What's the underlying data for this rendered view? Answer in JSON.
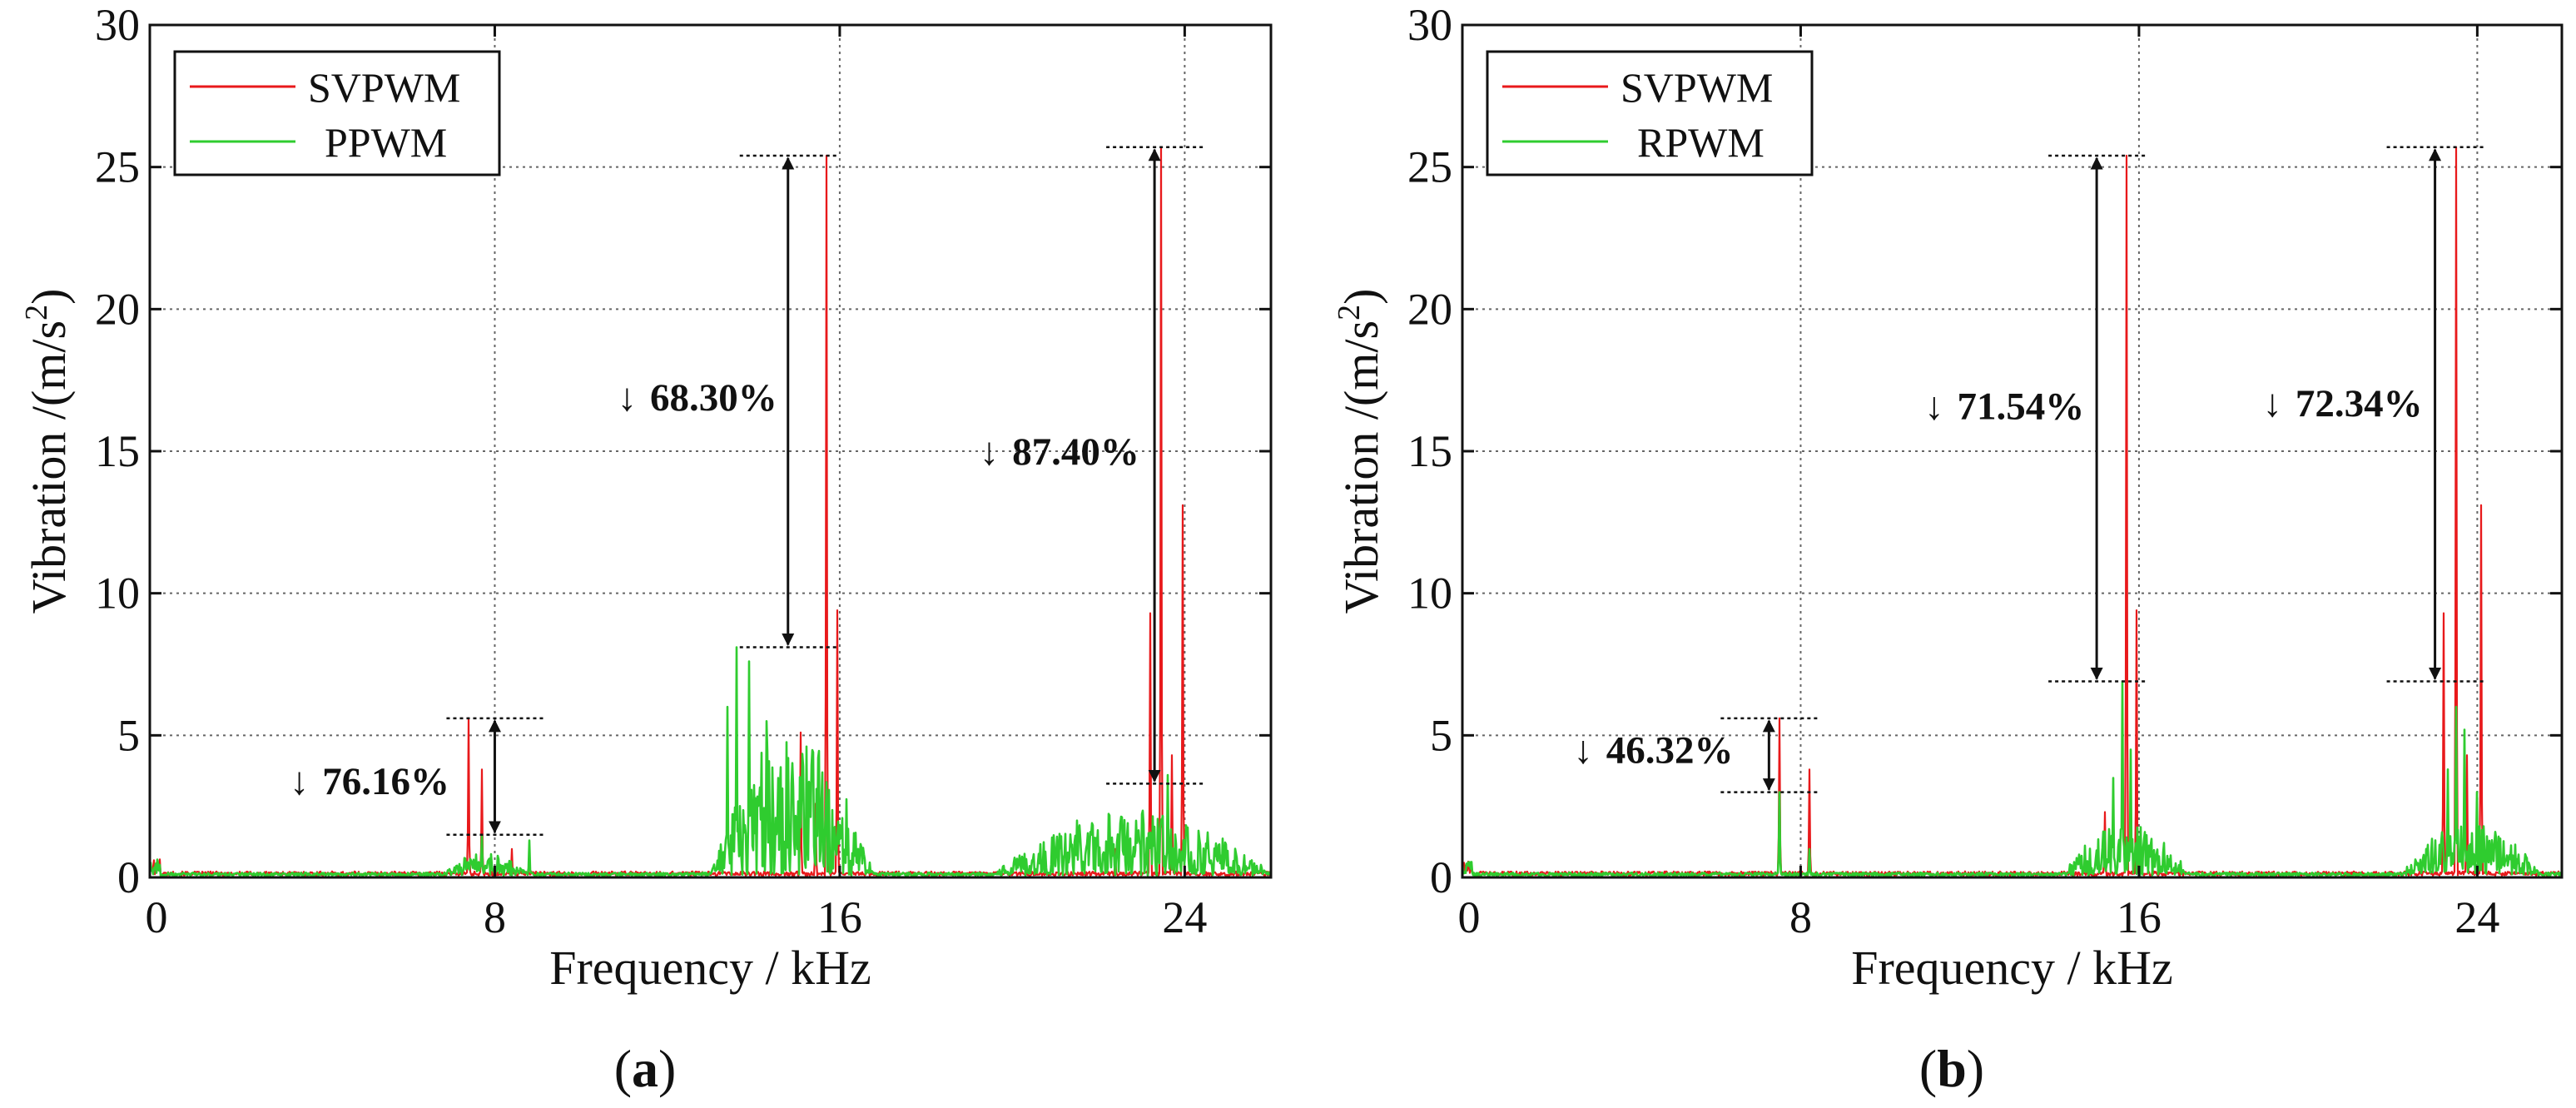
{
  "figure": {
    "colors": {
      "svpwm": "#e8191b",
      "alt": "#2fcc2f",
      "grid": "#666666",
      "frame": "#111111"
    }
  },
  "chart_data": [
    {
      "type": "line",
      "panel_label": "(a)",
      "panel_letter": "a",
      "title": "",
      "xlabel": "Frequency / kHz",
      "ylabel": "Vibration /(m/s",
      "ylabel_sup": "2",
      "ylabel_end": ")",
      "xlim": [
        0,
        26
      ],
      "ylim": [
        0,
        30
      ],
      "xticks": [
        0,
        8,
        16,
        24
      ],
      "yticks": [
        0,
        5,
        10,
        15,
        20,
        25,
        30
      ],
      "grid": true,
      "legend_position": "top-left",
      "legend": [
        "SVPWM",
        "PPWM"
      ],
      "series": [
        {
          "name": "SVPWM",
          "color": "#e8191b",
          "baseline": 0.15,
          "peaks": [
            [
              7.4,
              5.6
            ],
            [
              7.7,
              3.8
            ],
            [
              8.4,
              1.0
            ],
            [
              15.1,
              5.1
            ],
            [
              15.7,
              25.4
            ],
            [
              15.95,
              9.4
            ],
            [
              15.45,
              2.6
            ],
            [
              23.2,
              9.3
            ],
            [
              23.45,
              25.7
            ],
            [
              23.7,
              4.3
            ],
            [
              23.95,
              13.1
            ],
            [
              22.4,
              1.0
            ]
          ]
        },
        {
          "name": "PPWM",
          "color": "#2fcc2f",
          "humps": [
            [
              6.8,
              8.8,
              0.8
            ],
            [
              13.0,
              16.8,
              5.0
            ],
            [
              19.6,
              26.0,
              2.2
            ]
          ],
          "peaks": [
            [
              7.7,
              1.5
            ],
            [
              8.8,
              1.3
            ],
            [
              13.4,
              6.0
            ],
            [
              13.6,
              8.1
            ],
            [
              13.9,
              7.6
            ],
            [
              14.3,
              5.5
            ],
            [
              14.8,
              4.2
            ],
            [
              15.3,
              3.0
            ],
            [
              23.6,
              3.6
            ],
            [
              21.5,
              2.0
            ]
          ]
        }
      ],
      "annotations": [
        {
          "text": "76.16%",
          "x": 8,
          "y_top": 5.6,
          "y_bottom": 1.5,
          "label_x": 4.0,
          "label_y": 3.4
        },
        {
          "text": "68.30%",
          "x": 14.8,
          "y_top": 25.4,
          "y_bottom": 8.1,
          "label_x": 11.6,
          "label_y": 16.9
        },
        {
          "text": "87.40%",
          "x": 23.3,
          "y_top": 25.7,
          "y_bottom": 3.3,
          "label_x": 20.0,
          "label_y": 15.0
        }
      ]
    },
    {
      "type": "line",
      "panel_label": "(b)",
      "panel_letter": "b",
      "title": "",
      "xlabel": "Frequency / kHz",
      "ylabel": "Vibration /(m/s",
      "ylabel_sup": "2",
      "ylabel_end": ")",
      "xlim": [
        0,
        26
      ],
      "ylim": [
        0,
        30
      ],
      "xticks": [
        0,
        8,
        16,
        24
      ],
      "yticks": [
        0,
        5,
        10,
        15,
        20,
        25,
        30
      ],
      "grid": true,
      "legend_position": "top-left",
      "legend": [
        "SVPWM",
        "RPWM"
      ],
      "series": [
        {
          "name": "SVPWM",
          "color": "#e8191b",
          "baseline": 0.15,
          "peaks": [
            [
              7.5,
              5.6
            ],
            [
              8.2,
              3.8
            ],
            [
              15.2,
              2.3
            ],
            [
              15.7,
              25.4
            ],
            [
              15.95,
              9.4
            ],
            [
              23.2,
              9.3
            ],
            [
              23.5,
              25.7
            ],
            [
              23.75,
              4.3
            ],
            [
              24.1,
              13.1
            ]
          ]
        },
        {
          "name": "RPWM",
          "color": "#2fcc2f",
          "humps": [
            [
              14.2,
              17.2,
              1.8
            ],
            [
              22.2,
              25.5,
              1.8
            ]
          ],
          "peaks": [
            [
              7.5,
              3.0
            ],
            [
              8.2,
              1.0
            ],
            [
              15.4,
              3.5
            ],
            [
              15.6,
              6.9
            ],
            [
              15.8,
              4.5
            ],
            [
              23.3,
              3.8
            ],
            [
              23.5,
              6.0
            ],
            [
              23.7,
              5.2
            ],
            [
              24.0,
              3.0
            ]
          ]
        }
      ],
      "annotations": [
        {
          "text": "46.32%",
          "x": 7.25,
          "y_top": 5.6,
          "y_bottom": 3.0,
          "label_x": 3.4,
          "label_y": 4.5
        },
        {
          "text": "71.54%",
          "x": 15.0,
          "y_top": 25.4,
          "y_bottom": 6.9,
          "label_x": 11.7,
          "label_y": 16.6
        },
        {
          "text": "72.34%",
          "x": 23.0,
          "y_top": 25.7,
          "y_bottom": 6.9,
          "label_x": 19.7,
          "label_y": 16.7
        }
      ]
    }
  ]
}
